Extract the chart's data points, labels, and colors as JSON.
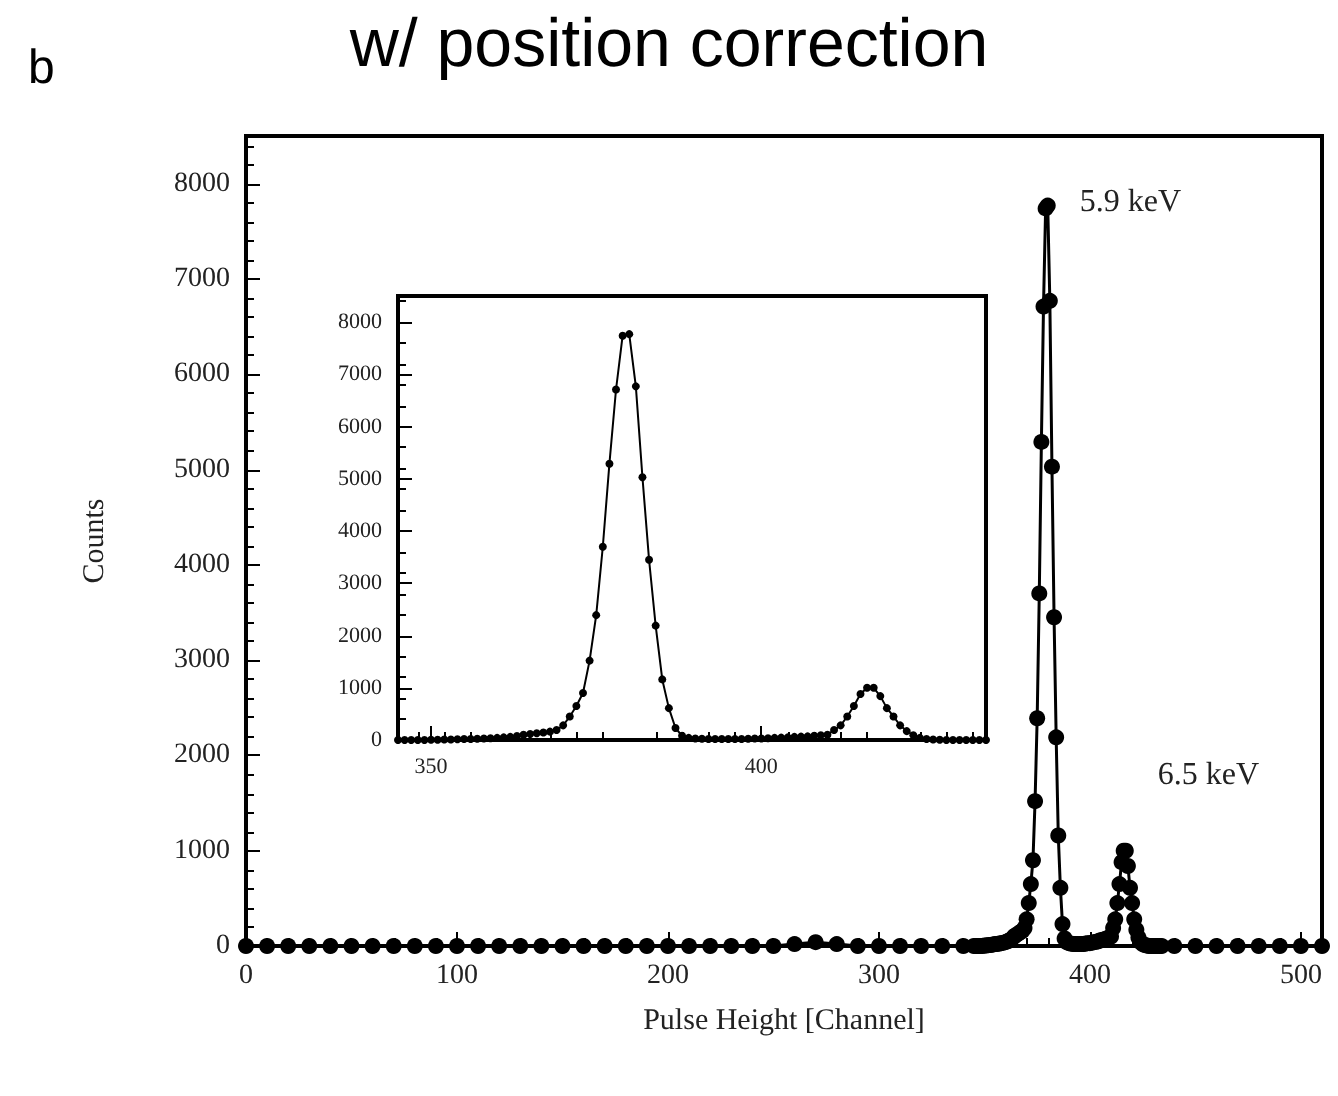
{
  "chart_data": [
    {
      "type": "line",
      "title": "w/ position correction",
      "xlabel": "Pulse Height [Channel]",
      "ylabel": "Counts",
      "color": "#000000",
      "marker": "circle",
      "line_style": "solid",
      "xlim": [
        0,
        510
      ],
      "ylim": [
        0,
        8500
      ],
      "xticks": [
        0,
        100,
        200,
        300,
        400,
        500
      ],
      "yticks": [
        0,
        1000,
        2000,
        3000,
        4000,
        5000,
        6000,
        7000,
        8000
      ],
      "x": [
        0,
        10,
        20,
        30,
        40,
        50,
        60,
        70,
        80,
        90,
        100,
        110,
        120,
        130,
        140,
        150,
        160,
        170,
        180,
        190,
        200,
        210,
        220,
        230,
        240,
        250,
        260,
        270,
        280,
        290,
        300,
        310,
        320,
        330,
        340,
        345,
        346,
        347,
        348,
        349,
        350,
        351,
        352,
        353,
        354,
        355,
        356,
        357,
        358,
        359,
        360,
        361,
        362,
        363,
        364,
        365,
        366,
        367,
        368,
        369,
        370,
        371,
        372,
        373,
        374,
        375,
        376,
        377,
        378,
        379,
        380,
        381,
        382,
        383,
        384,
        385,
        386,
        387,
        388,
        389,
        390,
        391,
        392,
        393,
        394,
        395,
        396,
        397,
        398,
        399,
        400,
        401,
        402,
        403,
        404,
        405,
        406,
        407,
        408,
        409,
        410,
        411,
        412,
        413,
        414,
        415,
        416,
        417,
        418,
        419,
        420,
        421,
        422,
        423,
        424,
        425,
        426,
        427,
        428,
        429,
        430,
        431,
        432,
        433,
        434,
        440,
        450,
        460,
        470,
        480,
        490,
        500,
        510
      ],
      "values": [
        0,
        0,
        0,
        0,
        0,
        0,
        0,
        0,
        0,
        0,
        0,
        0,
        0,
        0,
        0,
        0,
        0,
        0,
        0,
        0,
        0,
        0,
        0,
        0,
        0,
        0,
        20,
        40,
        20,
        0,
        0,
        0,
        0,
        0,
        0,
        0,
        0,
        0,
        0,
        0,
        5,
        5,
        10,
        10,
        15,
        20,
        20,
        25,
        30,
        35,
        40,
        50,
        60,
        75,
        100,
        115,
        130,
        145,
        160,
        190,
        280,
        450,
        650,
        900,
        1520,
        2390,
        3700,
        5290,
        6710,
        7740,
        7770,
        6770,
        5030,
        3450,
        2190,
        1160,
        610,
        230,
        80,
        40,
        30,
        25,
        20,
        20,
        20,
        20,
        20,
        20,
        25,
        30,
        30,
        35,
        40,
        45,
        50,
        60,
        65,
        70,
        80,
        90,
        100,
        190,
        280,
        450,
        650,
        880,
        1000,
        1000,
        840,
        610,
        450,
        280,
        170,
        90,
        40,
        20,
        10,
        5,
        0,
        0,
        0,
        0,
        0,
        0,
        0,
        0,
        0,
        0,
        0,
        0,
        0,
        0,
        0
      ],
      "annotations": [
        "b",
        {
          "text": "5.9 keV",
          "x": 380,
          "y": 7770
        },
        {
          "text": "6.5 keV",
          "x": 417,
          "y": 1000
        }
      ]
    },
    {
      "type": "line",
      "color": "#000000",
      "marker": "circle",
      "line_style": "solid",
      "xlim": [
        345,
        434
      ],
      "ylim": [
        0,
        8500
      ],
      "xticks": [
        350,
        400
      ],
      "yticks": [
        0,
        1000,
        2000,
        3000,
        4000,
        5000,
        6000,
        7000,
        8000
      ],
      "x": [
        345,
        346,
        347,
        348,
        349,
        350,
        351,
        352,
        353,
        354,
        355,
        356,
        357,
        358,
        359,
        360,
        361,
        362,
        363,
        364,
        365,
        366,
        367,
        368,
        369,
        370,
        371,
        372,
        373,
        374,
        375,
        376,
        377,
        378,
        379,
        380,
        381,
        382,
        383,
        384,
        385,
        386,
        387,
        388,
        389,
        390,
        391,
        392,
        393,
        394,
        395,
        396,
        397,
        398,
        399,
        400,
        401,
        402,
        403,
        404,
        405,
        406,
        407,
        408,
        409,
        410,
        411,
        412,
        413,
        414,
        415,
        416,
        417,
        418,
        419,
        420,
        421,
        422,
        423,
        424,
        425,
        426,
        427,
        428,
        429,
        430,
        431,
        432,
        433,
        434
      ],
      "values": [
        0,
        0,
        0,
        0,
        0,
        5,
        5,
        10,
        10,
        15,
        20,
        20,
        25,
        30,
        35,
        40,
        50,
        60,
        75,
        100,
        115,
        130,
        145,
        160,
        190,
        280,
        450,
        650,
        900,
        1520,
        2390,
        3700,
        5290,
        6710,
        7740,
        7770,
        6770,
        5030,
        3450,
        2190,
        1160,
        610,
        230,
        80,
        40,
        30,
        25,
        20,
        20,
        20,
        20,
        20,
        20,
        25,
        30,
        30,
        35,
        40,
        45,
        50,
        60,
        65,
        70,
        80,
        90,
        100,
        190,
        280,
        450,
        650,
        880,
        1000,
        1000,
        840,
        610,
        450,
        280,
        170,
        90,
        40,
        20,
        10,
        5,
        0,
        0,
        0,
        0,
        0,
        0,
        0
      ]
    }
  ]
}
